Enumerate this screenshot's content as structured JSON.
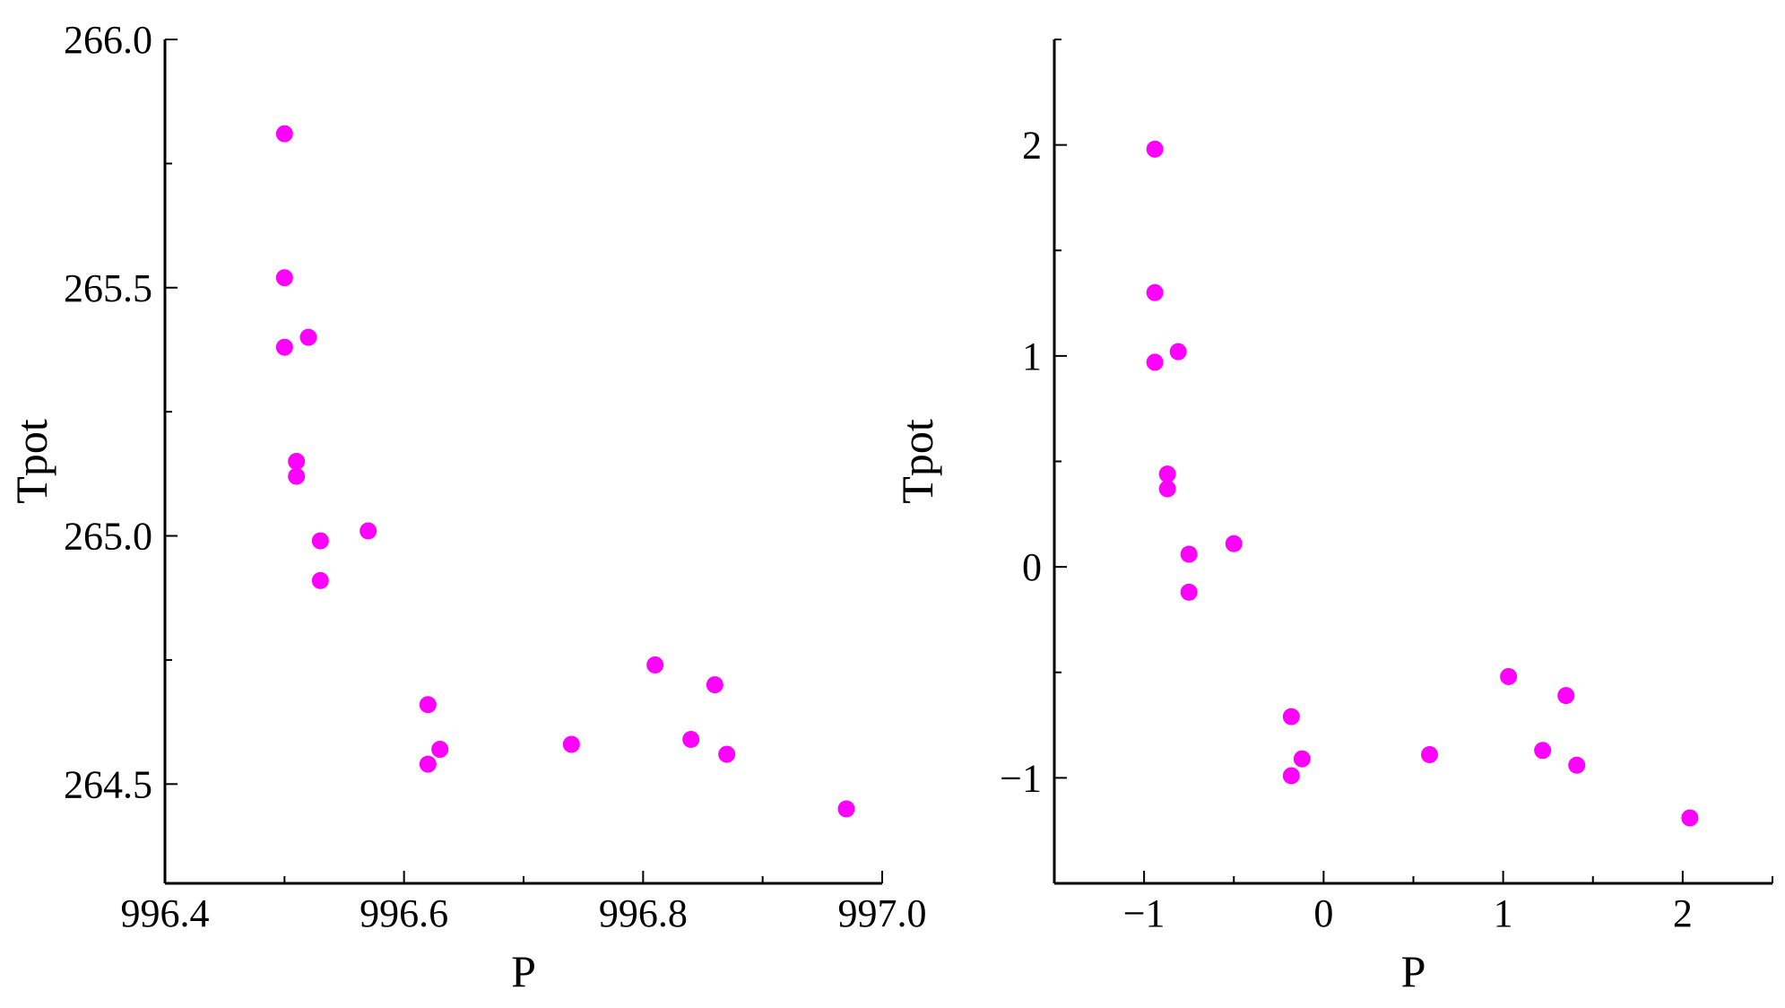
{
  "chart_data": [
    {
      "type": "scatter",
      "title": "",
      "xlabel": "P",
      "ylabel": "Tpot",
      "xlim": [
        996.4,
        997.0
      ],
      "ylim": [
        264.3,
        266.0
      ],
      "xticks": [
        996.4,
        996.6,
        996.8,
        997.0
      ],
      "xtick_labels": [
        "996.4",
        "996.6",
        "996.8",
        "997.0"
      ],
      "yticks": [
        264.5,
        265.0,
        265.5,
        266.0
      ],
      "ytick_labels": [
        "264.5",
        "265.0",
        "265.5",
        "266.0"
      ],
      "x_minor_step": 0.1,
      "y_minor_step": 0.25,
      "grid": false,
      "color": "#ff00ff",
      "points": [
        {
          "x": 996.5,
          "y": 265.81
        },
        {
          "x": 996.5,
          "y": 265.52
        },
        {
          "x": 996.5,
          "y": 265.38
        },
        {
          "x": 996.52,
          "y": 265.4
        },
        {
          "x": 996.51,
          "y": 265.15
        },
        {
          "x": 996.51,
          "y": 265.12
        },
        {
          "x": 996.53,
          "y": 264.99
        },
        {
          "x": 996.53,
          "y": 264.91
        },
        {
          "x": 996.57,
          "y": 265.01
        },
        {
          "x": 996.62,
          "y": 264.66
        },
        {
          "x": 996.63,
          "y": 264.57
        },
        {
          "x": 996.62,
          "y": 264.54
        },
        {
          "x": 996.74,
          "y": 264.58
        },
        {
          "x": 996.81,
          "y": 264.74
        },
        {
          "x": 996.86,
          "y": 264.7
        },
        {
          "x": 996.84,
          "y": 264.59
        },
        {
          "x": 996.87,
          "y": 264.56
        },
        {
          "x": 996.97,
          "y": 264.45
        }
      ]
    },
    {
      "type": "scatter",
      "title": "",
      "xlabel": "P",
      "ylabel": "Tpot",
      "xlim": [
        -1.5,
        2.5
      ],
      "ylim": [
        -1.5,
        2.5
      ],
      "xticks": [
        -1,
        0,
        1,
        2
      ],
      "xtick_labels": [
        "−1",
        "0",
        "1",
        "2"
      ],
      "yticks": [
        -1,
        0,
        1,
        2
      ],
      "ytick_labels": [
        "−1",
        "0",
        "1",
        "2"
      ],
      "x_minor_step": 0.5,
      "y_minor_step": 0.5,
      "grid": false,
      "color": "#ff00ff",
      "points": [
        {
          "x": -0.94,
          "y": 1.98
        },
        {
          "x": -0.94,
          "y": 1.3
        },
        {
          "x": -0.94,
          "y": 0.97
        },
        {
          "x": -0.81,
          "y": 1.02
        },
        {
          "x": -0.87,
          "y": 0.44
        },
        {
          "x": -0.87,
          "y": 0.37
        },
        {
          "x": -0.75,
          "y": 0.06
        },
        {
          "x": -0.75,
          "y": -0.12
        },
        {
          "x": -0.5,
          "y": 0.11
        },
        {
          "x": -0.18,
          "y": -0.71
        },
        {
          "x": -0.12,
          "y": -0.91
        },
        {
          "x": -0.18,
          "y": -0.99
        },
        {
          "x": 0.59,
          "y": -0.89
        },
        {
          "x": 1.03,
          "y": -0.52
        },
        {
          "x": 1.35,
          "y": -0.61
        },
        {
          "x": 1.22,
          "y": -0.87
        },
        {
          "x": 1.41,
          "y": -0.94
        },
        {
          "x": 2.04,
          "y": -1.19
        }
      ]
    }
  ]
}
